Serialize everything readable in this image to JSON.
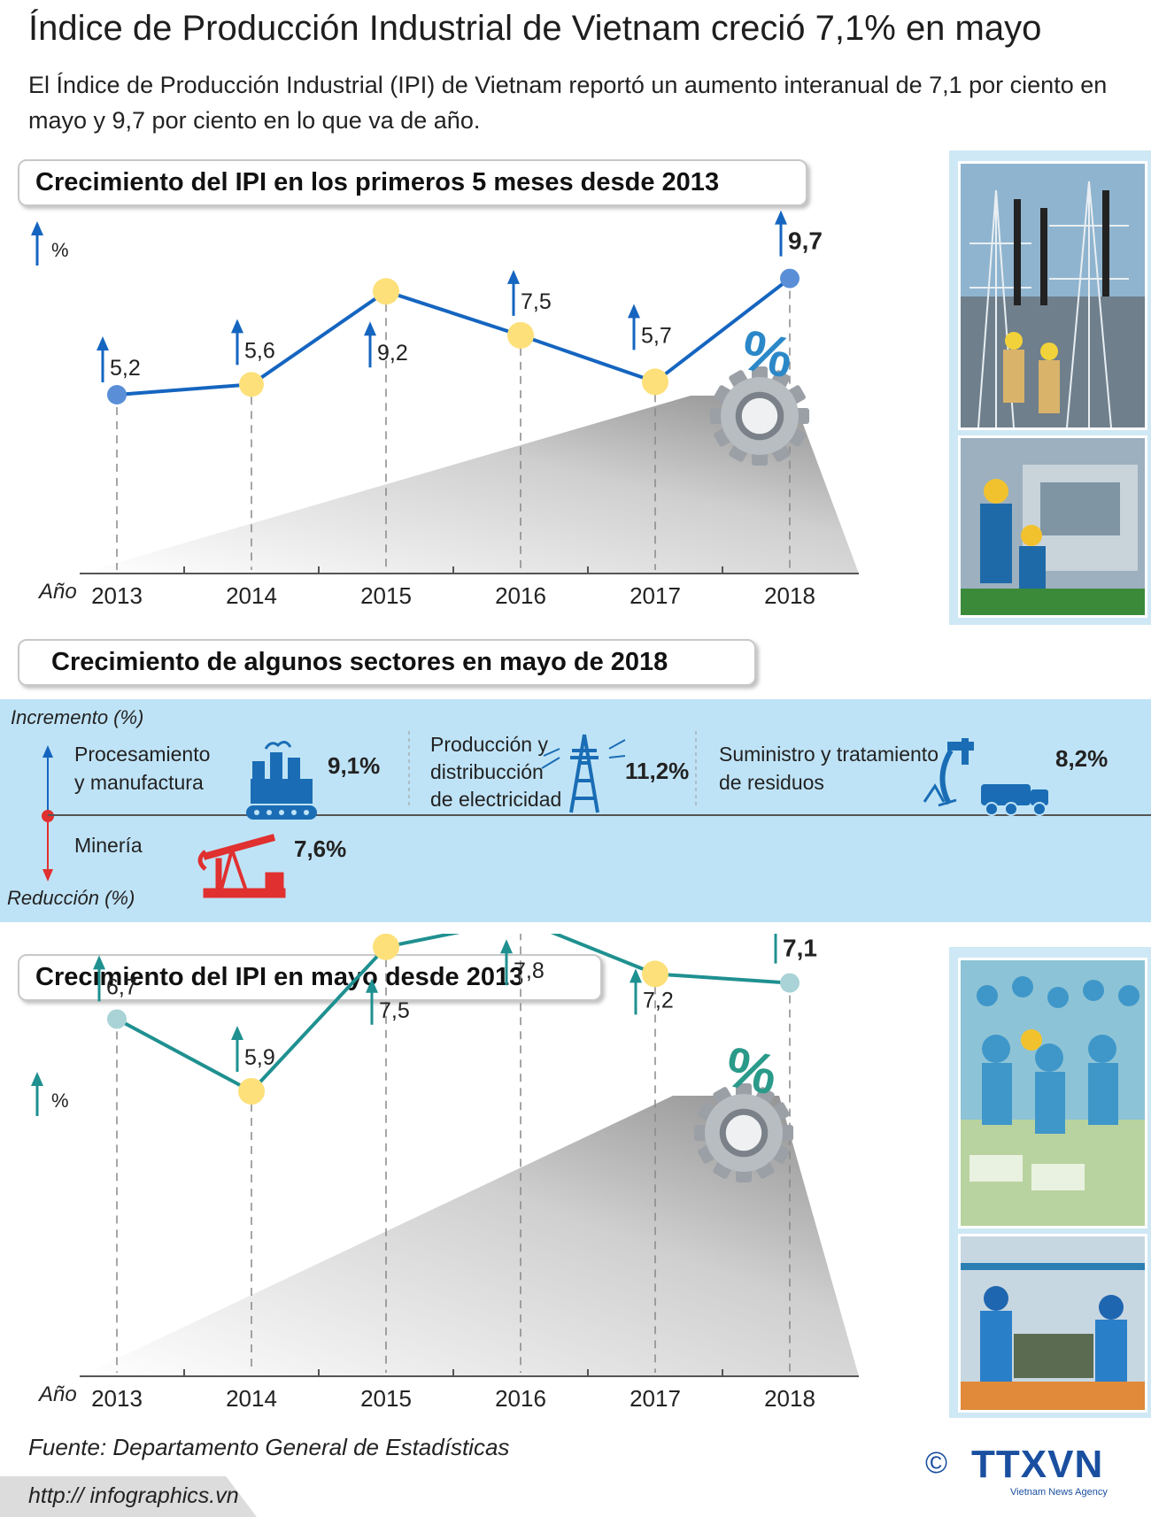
{
  "header": {
    "title": "Índice de Producción Industrial de Vietnam creció 7,1% en mayo",
    "subtitle": "El Índice de Producción Industrial (IPI) de Vietnam reportó un aumento interanual de 7,1 por ciento en mayo y 9,7 por ciento en lo que va de año."
  },
  "colors": {
    "line1": "#1565c0",
    "line2": "#1f9090",
    "dot_yellow": "#fde07a",
    "dot_blue": "#5a8fd8",
    "dot_teal": "#a9d3d6",
    "panel": "#bfe3f6",
    "red": "#e03030"
  },
  "chart_data": [
    {
      "type": "line",
      "title": "Crecimiento del IPI en los primeros 5 meses desde 2013",
      "xlabel": "Año",
      "ylabel": "%",
      "x": [
        "2013",
        "2014",
        "2015",
        "2016",
        "2017",
        "2018"
      ],
      "values": [
        5.2,
        5.6,
        9.2,
        7.5,
        5.7,
        9.7
      ],
      "labels": [
        "5,2",
        "5,6",
        "9,2",
        "7,5",
        "5,7",
        "9,7"
      ],
      "grid": false,
      "legend": "none"
    },
    {
      "type": "line",
      "title": "Crecimiento del IPI en mayo desde 2013",
      "xlabel": "Año",
      "ylabel": "%",
      "x": [
        "2013",
        "2014",
        "2015",
        "2016",
        "2017",
        "2018"
      ],
      "values": [
        6.7,
        5.9,
        7.5,
        7.8,
        7.2,
        7.1
      ],
      "labels": [
        "6,7",
        "5,9",
        "7,5",
        "7,8",
        "7,2",
        "7,1"
      ],
      "grid": false,
      "legend": "none"
    }
  ],
  "sectors": {
    "title": "Crecimiento de algunos sectores en mayo de 2018",
    "increase_label": "Incremento (%)",
    "decrease_label": "Reducción (%)",
    "items": [
      {
        "name_line1": "Procesamiento",
        "name_line2": "y manufactura",
        "name_line3": "",
        "value": "9,1%",
        "icon": "factory-icon"
      },
      {
        "name_line1": "Producción y",
        "name_line2": "distribucción",
        "name_line3": "de electricidad",
        "value": "11,2%",
        "icon": "power-tower-icon"
      },
      {
        "name_line1": "Suministro y tratamiento",
        "name_line2": "de residuos",
        "name_line3": "",
        "value": "8,2%",
        "icon": "water-truck-icon"
      }
    ],
    "decline": {
      "name": "Minería",
      "value": "7,6%",
      "icon": "oil-pump-icon"
    }
  },
  "footer": {
    "source": "Fuente: Departamento General de Estadísticas",
    "url": "http:// infographics.vn",
    "copyright": "©",
    "logo_text": "TTXVN",
    "logo_sub": "Vietnam News Agency"
  }
}
